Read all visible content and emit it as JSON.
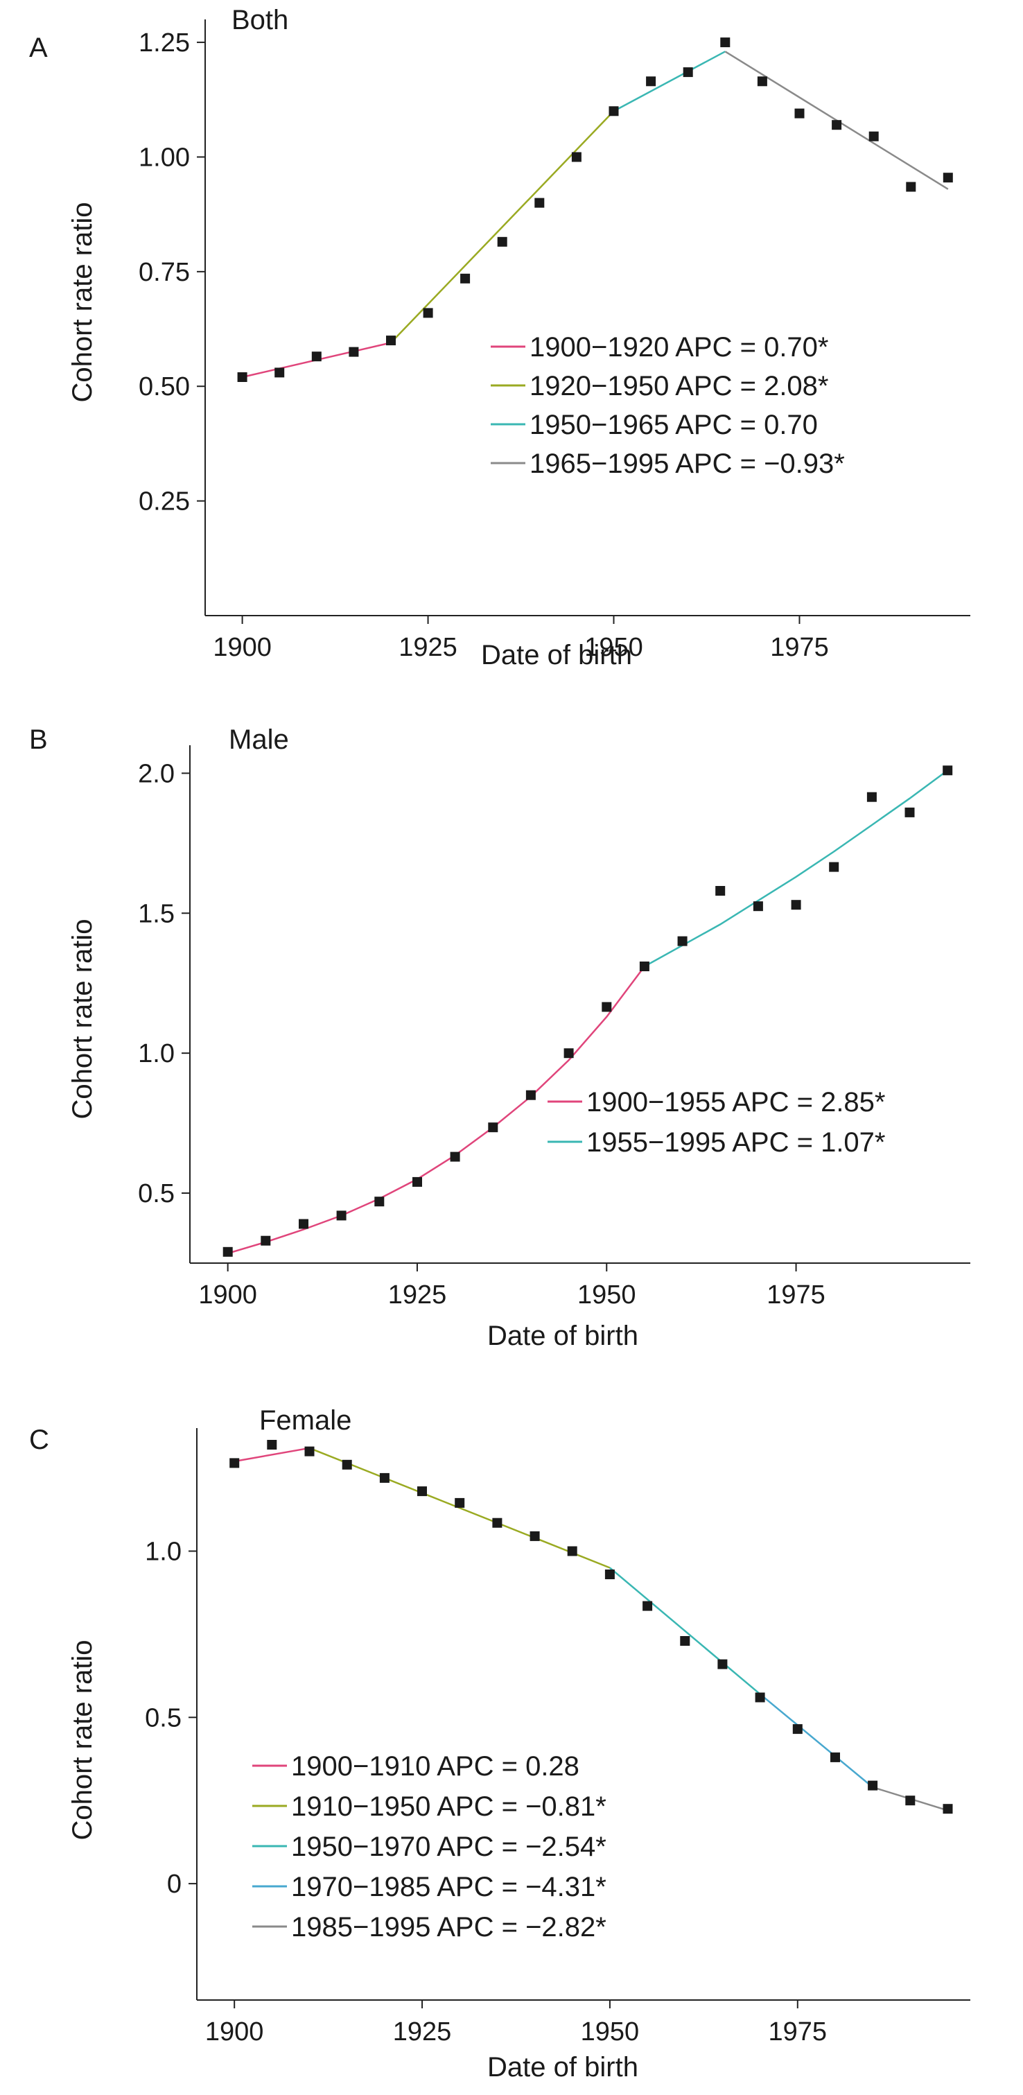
{
  "chart_data": [
    {
      "type": "scatter",
      "panel": "A",
      "title": "Both",
      "xlabel": "Date of birth",
      "ylabel": "Cohort rate ratio",
      "xlim": [
        1895,
        1998
      ],
      "ylim": [
        0.0,
        1.3
      ],
      "xticks": [
        1900,
        1925,
        1950,
        1975
      ],
      "xtick_labels": [
        "1900",
        "1925",
        "1950",
        "1975"
      ],
      "yticks": [
        0.25,
        0.5,
        0.75,
        1.0,
        1.25
      ],
      "ytick_labels": [
        "0.25",
        "0.50",
        "0.75",
        "1.00",
        "1.25"
      ],
      "legend_position": "center-right",
      "points": {
        "x": [
          1900,
          1905,
          1910,
          1915,
          1920,
          1925,
          1930,
          1935,
          1940,
          1945,
          1950,
          1955,
          1960,
          1965,
          1970,
          1975,
          1980,
          1985,
          1990,
          1995
        ],
        "y": [
          0.52,
          0.53,
          0.565,
          0.575,
          0.6,
          0.66,
          0.735,
          0.815,
          0.9,
          1.0,
          1.1,
          1.165,
          1.185,
          1.25,
          1.165,
          1.095,
          1.07,
          1.045,
          0.935,
          0.955
        ]
      },
      "series": [
        {
          "name": "1900−1920 APC = 0.70*",
          "color": "#e0457b",
          "x": [
            1900,
            1920
          ],
          "y": [
            0.52,
            0.595
          ]
        },
        {
          "name": "1920−1950 APC = 2.08*",
          "color": "#9aaa22",
          "x": [
            1920,
            1950
          ],
          "y": [
            0.595,
            1.1
          ]
        },
        {
          "name": "1950−1965 APC = 0.70",
          "color": "#3ab7b3",
          "x": [
            1950,
            1965
          ],
          "y": [
            1.1,
            1.23
          ]
        },
        {
          "name": "1965−1995 APC = −0.93*",
          "color": "#8a8a8a",
          "x": [
            1965,
            1995
          ],
          "y": [
            1.23,
            0.93
          ]
        }
      ]
    },
    {
      "type": "scatter",
      "panel": "B",
      "title": "Male",
      "xlabel": "Date of birth",
      "ylabel": "Cohort rate ratio",
      "xlim": [
        1895,
        1998
      ],
      "ylim": [
        0.25,
        2.1
      ],
      "xticks": [
        1900,
        1925,
        1950,
        1975
      ],
      "xtick_labels": [
        "1900",
        "1925",
        "1950",
        "1975"
      ],
      "yticks": [
        0.5,
        1.0,
        1.5,
        2.0
      ],
      "ytick_labels": [
        "0.5",
        "1.0",
        "1.5",
        "2.0"
      ],
      "legend_position": "lower-right",
      "points": {
        "x": [
          1900,
          1905,
          1910,
          1915,
          1920,
          1925,
          1930,
          1935,
          1940,
          1945,
          1950,
          1955,
          1960,
          1965,
          1970,
          1975,
          1980,
          1985,
          1990,
          1995
        ],
        "y": [
          0.29,
          0.33,
          0.39,
          0.42,
          0.47,
          0.54,
          0.63,
          0.735,
          0.85,
          1.0,
          1.165,
          1.31,
          1.4,
          1.58,
          1.525,
          1.53,
          1.665,
          1.915,
          1.86,
          2.01
        ]
      },
      "series": [
        {
          "name": "1900−1955 APC = 2.85*",
          "color": "#e0457b",
          "x": [
            1900,
            1905,
            1910,
            1915,
            1920,
            1925,
            1930,
            1935,
            1940,
            1945,
            1950,
            1955
          ],
          "y": [
            0.285,
            0.325,
            0.37,
            0.42,
            0.48,
            0.55,
            0.635,
            0.735,
            0.845,
            0.975,
            1.13,
            1.31
          ]
        },
        {
          "name": "1955−1995 APC = 1.07*",
          "color": "#3ab7b3",
          "x": [
            1955,
            1960,
            1965,
            1970,
            1975,
            1980,
            1985,
            1990,
            1995
          ],
          "y": [
            1.31,
            1.385,
            1.46,
            1.545,
            1.63,
            1.72,
            1.815,
            1.91,
            2.01
          ]
        }
      ]
    },
    {
      "type": "scatter",
      "panel": "C",
      "title": "Female",
      "xlabel": "Date of birth",
      "ylabel": "Cohort rate ratio",
      "xlim": [
        1895,
        1998
      ],
      "ylim": [
        -0.35,
        1.37
      ],
      "xticks": [
        1900,
        1925,
        1950,
        1975
      ],
      "xtick_labels": [
        "1900",
        "1925",
        "1950",
        "1975"
      ],
      "yticks": [
        0.0,
        0.5,
        1.0
      ],
      "ytick_labels": [
        "0",
        "0.5",
        "1.0"
      ],
      "legend_position": "lower-left",
      "points": {
        "x": [
          1900,
          1905,
          1910,
          1915,
          1920,
          1925,
          1930,
          1935,
          1940,
          1945,
          1950,
          1955,
          1960,
          1965,
          1970,
          1975,
          1980,
          1985,
          1990,
          1995
        ],
        "y": [
          1.265,
          1.32,
          1.3,
          1.26,
          1.22,
          1.18,
          1.145,
          1.085,
          1.045,
          1.0,
          0.93,
          0.835,
          0.73,
          0.66,
          0.56,
          0.465,
          0.38,
          0.295,
          0.25,
          0.225
        ]
      },
      "series": [
        {
          "name": "1900−1910 APC = 0.28",
          "color": "#e0457b",
          "x": [
            1900,
            1910
          ],
          "y": [
            1.27,
            1.31
          ]
        },
        {
          "name": "1910−1950 APC = −0.81*",
          "color": "#9aaa22",
          "x": [
            1910,
            1950
          ],
          "y": [
            1.31,
            0.95
          ]
        },
        {
          "name": "1950−1970 APC = −2.54*",
          "color": "#3ab7b3",
          "x": [
            1950,
            1970
          ],
          "y": [
            0.95,
            0.57
          ]
        },
        {
          "name": "1970−1985 APC = −4.31*",
          "color": "#48a8cf",
          "x": [
            1970,
            1985
          ],
          "y": [
            0.57,
            0.29
          ]
        },
        {
          "name": "1985−1995 APC = −2.82*",
          "color": "#8a8a8a",
          "x": [
            1985,
            1995
          ],
          "y": [
            0.29,
            0.22
          ]
        }
      ]
    }
  ]
}
